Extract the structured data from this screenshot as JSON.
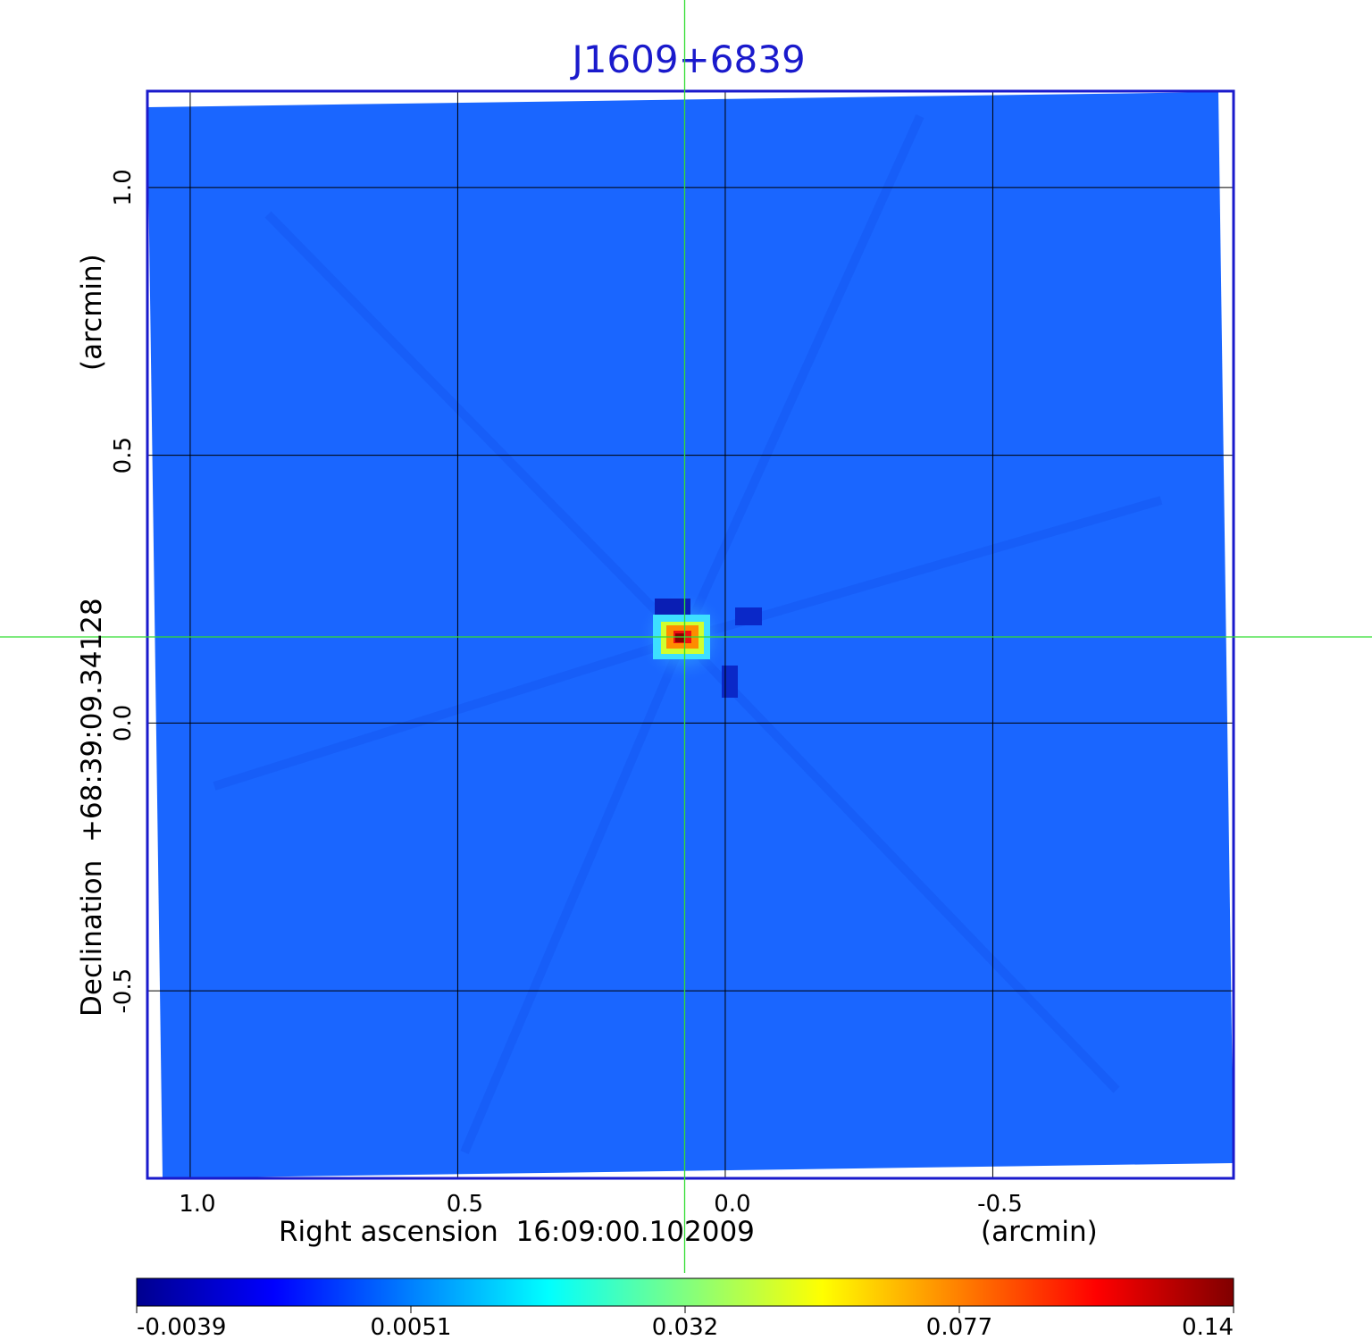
{
  "chart_data": {
    "type": "heatmap",
    "title": "J1609+6839",
    "xlabel": "Right ascension  16:09:00.102009",
    "xlabel_unit": "(arcmin)",
    "ylabel": "Declination  +68:39:09.34128",
    "ylabel_unit": "(arcmin)",
    "x_ticks": [
      "1.0",
      "0.5",
      "0.0",
      "-0.5"
    ],
    "y_ticks": [
      "1.0",
      "0.5",
      "0.0",
      "-0.5"
    ],
    "x_tick_values": [
      1.0,
      0.5,
      0.0,
      -0.5
    ],
    "y_tick_values": [
      1.0,
      0.5,
      0.0,
      -0.5
    ],
    "xlim": [
      1.08,
      -0.95
    ],
    "ylim": [
      -0.85,
      1.18
    ],
    "grid": true,
    "crosshair": {
      "x": 0.075,
      "y": 0.16
    },
    "source_peak": {
      "x": 0.08,
      "y": 0.16,
      "value": 0.14
    },
    "colorbar": {
      "ticks": [
        "-0.0039",
        "0.0051",
        "0.032",
        "0.077",
        "0.14"
      ],
      "tick_values": [
        -0.0039,
        0.0051,
        0.032,
        0.077,
        0.14
      ],
      "range": [
        -0.0039,
        0.14
      ],
      "colormap": [
        "#00008f",
        "#0000ff",
        "#0080ff",
        "#00ffff",
        "#80ff80",
        "#ffff00",
        "#ff8000",
        "#ff0000",
        "#800000"
      ]
    },
    "background_color": "#1a66ff",
    "frame_color": "#1a1acc",
    "crosshair_color": "#33dd33"
  }
}
